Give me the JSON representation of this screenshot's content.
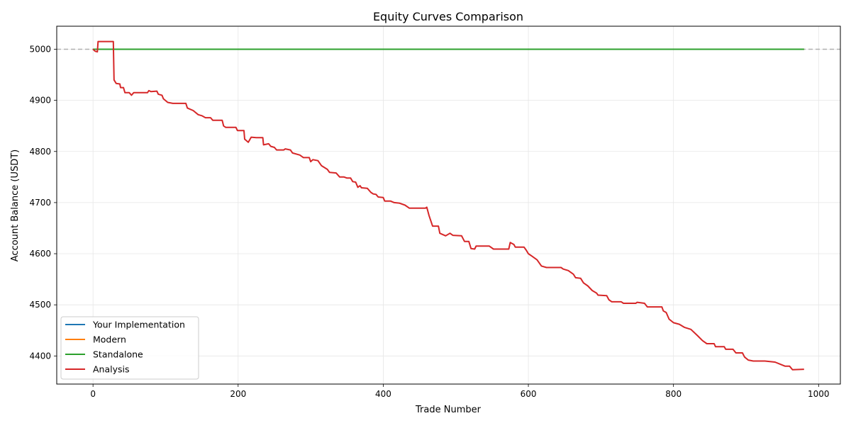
{
  "chart_data": {
    "type": "line",
    "title": "Equity Curves Comparison",
    "xlabel": "Trade Number",
    "ylabel": "Account Balance (USDT)",
    "xlim": [
      -50,
      1030
    ],
    "ylim": [
      4345,
      5045
    ],
    "xticks": [
      0,
      200,
      400,
      600,
      800,
      1000
    ],
    "yticks": [
      4400,
      4500,
      4600,
      4700,
      4800,
      4900,
      5000
    ],
    "grid": true,
    "legend_position": "lower-left",
    "reference_line": {
      "y": 5000,
      "style": "dashed",
      "color": "#b0b0b0"
    },
    "series": [
      {
        "name": "Your Implementation",
        "color": "#1f77b4",
        "points": [
          [
            0,
            5000
          ],
          [
            980,
            5000
          ]
        ]
      },
      {
        "name": "Modern",
        "color": "#ff7f0e",
        "points": [
          [
            0,
            5000
          ],
          [
            980,
            5000
          ]
        ]
      },
      {
        "name": "Standalone",
        "color": "#2ca02c",
        "points": [
          [
            0,
            5000
          ],
          [
            980,
            5000
          ]
        ]
      },
      {
        "name": "Analysis",
        "color": "#d62728",
        "points": [
          [
            0,
            5000
          ],
          [
            3,
            4996
          ],
          [
            6,
            4995
          ],
          [
            7,
            5015
          ],
          [
            10,
            5015
          ],
          [
            28,
            5015
          ],
          [
            29,
            4940
          ],
          [
            32,
            4933
          ],
          [
            37,
            4932
          ],
          [
            38,
            4925
          ],
          [
            42,
            4925
          ],
          [
            44,
            4915
          ],
          [
            50,
            4915
          ],
          [
            53,
            4910
          ],
          [
            56,
            4915
          ],
          [
            75,
            4915
          ],
          [
            77,
            4919
          ],
          [
            80,
            4917
          ],
          [
            88,
            4918
          ],
          [
            90,
            4912
          ],
          [
            95,
            4910
          ],
          [
            97,
            4903
          ],
          [
            103,
            4896
          ],
          [
            110,
            4894
          ],
          [
            128,
            4894
          ],
          [
            130,
            4885
          ],
          [
            138,
            4880
          ],
          [
            145,
            4872
          ],
          [
            150,
            4870
          ],
          [
            155,
            4866
          ],
          [
            162,
            4866
          ],
          [
            165,
            4861
          ],
          [
            178,
            4861
          ],
          [
            180,
            4850
          ],
          [
            183,
            4847
          ],
          [
            197,
            4847
          ],
          [
            199,
            4841
          ],
          [
            208,
            4841
          ],
          [
            209,
            4824
          ],
          [
            214,
            4818
          ],
          [
            218,
            4828
          ],
          [
            225,
            4827
          ],
          [
            234,
            4827
          ],
          [
            235,
            4813
          ],
          [
            242,
            4815
          ],
          [
            245,
            4810
          ],
          [
            250,
            4808
          ],
          [
            253,
            4803
          ],
          [
            263,
            4803
          ],
          [
            265,
            4805
          ],
          [
            272,
            4803
          ],
          [
            275,
            4797
          ],
          [
            285,
            4793
          ],
          [
            290,
            4788
          ],
          [
            298,
            4788
          ],
          [
            300,
            4780
          ],
          [
            303,
            4784
          ],
          [
            310,
            4782
          ],
          [
            315,
            4772
          ],
          [
            323,
            4765
          ],
          [
            326,
            4759
          ],
          [
            335,
            4758
          ],
          [
            340,
            4750
          ],
          [
            346,
            4750
          ],
          [
            350,
            4748
          ],
          [
            355,
            4748
          ],
          [
            358,
            4741
          ],
          [
            362,
            4740
          ],
          [
            365,
            4730
          ],
          [
            368,
            4733
          ],
          [
            370,
            4729
          ],
          [
            378,
            4728
          ],
          [
            383,
            4720
          ],
          [
            386,
            4717
          ],
          [
            390,
            4716
          ],
          [
            393,
            4711
          ],
          [
            400,
            4710
          ],
          [
            402,
            4703
          ],
          [
            410,
            4703
          ],
          [
            415,
            4700
          ],
          [
            422,
            4699
          ],
          [
            430,
            4695
          ],
          [
            436,
            4689
          ],
          [
            458,
            4689
          ],
          [
            460,
            4691
          ],
          [
            463,
            4675
          ],
          [
            468,
            4654
          ],
          [
            476,
            4654
          ],
          [
            478,
            4640
          ],
          [
            486,
            4635
          ],
          [
            492,
            4640
          ],
          [
            496,
            4636
          ],
          [
            508,
            4635
          ],
          [
            512,
            4624
          ],
          [
            518,
            4624
          ],
          [
            521,
            4610
          ],
          [
            526,
            4609
          ],
          [
            528,
            4615
          ],
          [
            546,
            4615
          ],
          [
            552,
            4609
          ],
          [
            573,
            4609
          ],
          [
            575,
            4622
          ],
          [
            580,
            4618
          ],
          [
            582,
            4613
          ],
          [
            594,
            4613
          ],
          [
            597,
            4607
          ],
          [
            600,
            4600
          ],
          [
            605,
            4595
          ],
          [
            612,
            4588
          ],
          [
            618,
            4576
          ],
          [
            625,
            4573
          ],
          [
            640,
            4573
          ],
          [
            645,
            4573
          ],
          [
            648,
            4570
          ],
          [
            655,
            4567
          ],
          [
            662,
            4560
          ],
          [
            665,
            4553
          ],
          [
            672,
            4552
          ],
          [
            676,
            4543
          ],
          [
            682,
            4537
          ],
          [
            688,
            4528
          ],
          [
            694,
            4523
          ],
          [
            696,
            4519
          ],
          [
            708,
            4518
          ],
          [
            711,
            4510
          ],
          [
            715,
            4506
          ],
          [
            728,
            4506
          ],
          [
            731,
            4503
          ],
          [
            748,
            4503
          ],
          [
            750,
            4505
          ],
          [
            760,
            4503
          ],
          [
            764,
            4496
          ],
          [
            784,
            4496
          ],
          [
            786,
            4488
          ],
          [
            790,
            4485
          ],
          [
            794,
            4472
          ],
          [
            800,
            4465
          ],
          [
            808,
            4462
          ],
          [
            815,
            4456
          ],
          [
            824,
            4452
          ],
          [
            833,
            4440
          ],
          [
            840,
            4430
          ],
          [
            846,
            4424
          ],
          [
            856,
            4424
          ],
          [
            858,
            4418
          ],
          [
            870,
            4418
          ],
          [
            872,
            4413
          ],
          [
            882,
            4413
          ],
          [
            886,
            4406
          ],
          [
            895,
            4406
          ],
          [
            898,
            4398
          ],
          [
            903,
            4392
          ],
          [
            910,
            4390
          ],
          [
            926,
            4390
          ],
          [
            940,
            4388
          ],
          [
            947,
            4384
          ],
          [
            954,
            4380
          ],
          [
            960,
            4380
          ],
          [
            964,
            4373
          ],
          [
            980,
            4374
          ]
        ]
      }
    ]
  }
}
